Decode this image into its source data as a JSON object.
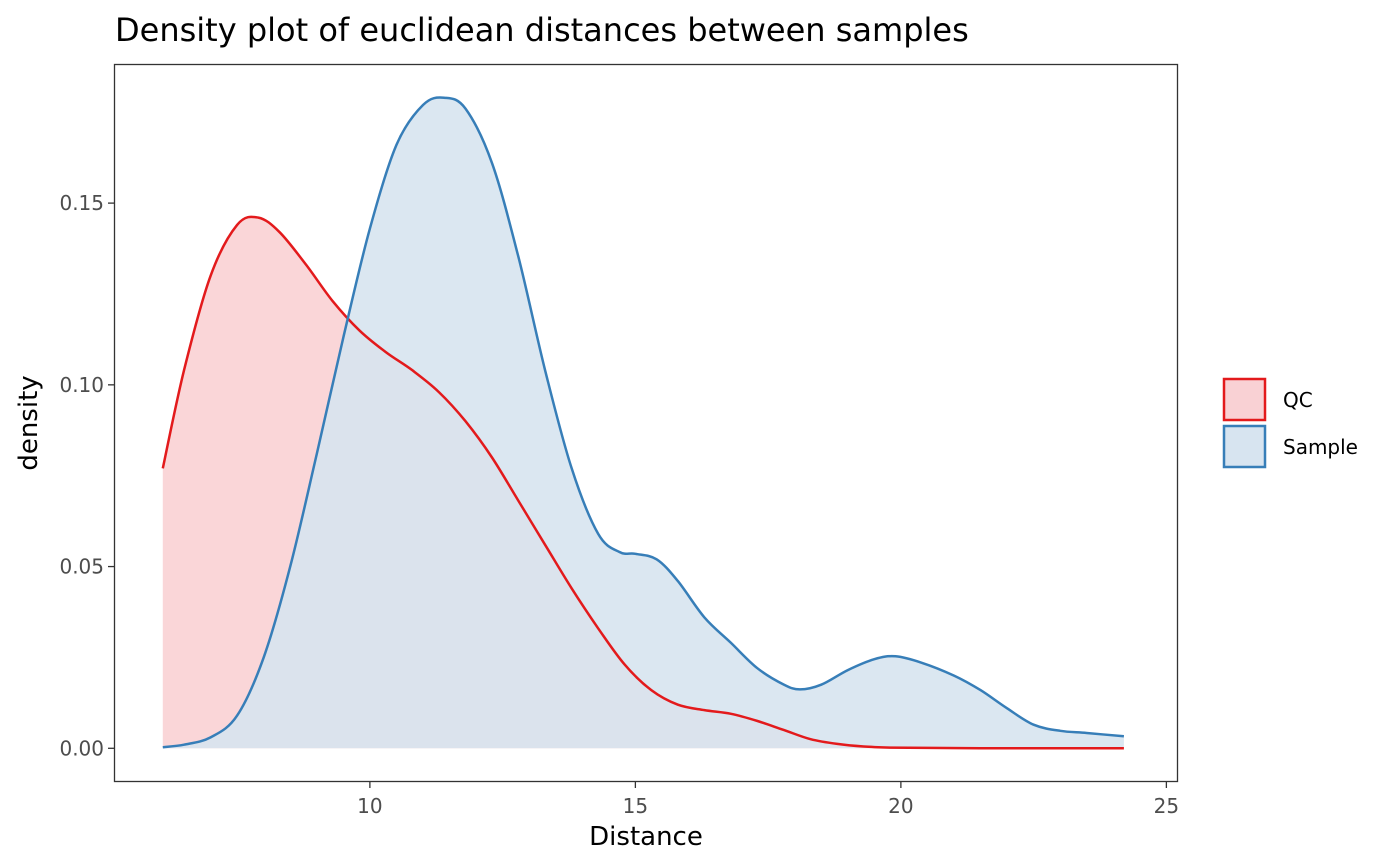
{
  "chart_data": {
    "type": "area",
    "title": "Density plot of euclidean distances between samples",
    "xlabel": "Distance",
    "ylabel": "density",
    "xlim": [
      5.2,
      25.2
    ],
    "ylim": [
      -0.009,
      0.188
    ],
    "x_ticks": [
      10,
      15,
      20,
      25
    ],
    "x_tick_labels": [
      "10",
      "15",
      "20",
      "25"
    ],
    "y_ticks": [
      0,
      0.05,
      0.1,
      0.15
    ],
    "y_tick_labels": [
      "0.00",
      "0.05",
      "0.10",
      "0.15"
    ],
    "grid": false,
    "legend_position": "right",
    "series": [
      {
        "name": "QC",
        "line_color": "#e31a1c",
        "fill_color": "#f9d1d4",
        "fill_opacity": 0.9,
        "x": [
          6.1,
          6.5,
          7.0,
          7.5,
          7.9,
          8.3,
          8.8,
          9.3,
          9.8,
          10.3,
          10.8,
          11.3,
          11.8,
          12.3,
          12.8,
          13.3,
          13.8,
          14.3,
          14.8,
          15.3,
          15.8,
          16.3,
          16.8,
          17.3,
          17.8,
          18.3,
          18.8,
          19.3,
          19.8,
          20.5,
          21.5,
          22.5,
          23.5,
          24.2
        ],
        "values": [
          0.077,
          0.104,
          0.13,
          0.144,
          0.146,
          0.142,
          0.133,
          0.123,
          0.115,
          0.109,
          0.104,
          0.098,
          0.09,
          0.08,
          0.068,
          0.056,
          0.044,
          0.033,
          0.023,
          0.016,
          0.012,
          0.0105,
          0.0095,
          0.0075,
          0.005,
          0.0025,
          0.0012,
          0.0005,
          0.0002,
          0.0001,
          0.0,
          0.0,
          0.0,
          0.0
        ]
      },
      {
        "name": "Sample",
        "line_color": "#377eb8",
        "fill_color": "#d7e4f0",
        "fill_opacity": 0.9,
        "x": [
          6.1,
          6.5,
          7.0,
          7.5,
          8.0,
          8.5,
          9.0,
          9.5,
          10.0,
          10.5,
          11.0,
          11.4,
          11.8,
          12.3,
          12.8,
          13.3,
          13.8,
          14.3,
          14.7,
          15.0,
          15.4,
          15.8,
          16.3,
          16.8,
          17.3,
          17.8,
          18.1,
          18.5,
          19.0,
          19.5,
          19.9,
          20.4,
          21.0,
          21.5,
          22.0,
          22.5,
          23.0,
          23.5,
          24.2
        ],
        "values": [
          0.0003,
          0.001,
          0.003,
          0.009,
          0.025,
          0.05,
          0.081,
          0.113,
          0.143,
          0.166,
          0.177,
          0.179,
          0.176,
          0.161,
          0.135,
          0.104,
          0.077,
          0.059,
          0.054,
          0.0535,
          0.052,
          0.046,
          0.036,
          0.029,
          0.022,
          0.0175,
          0.0162,
          0.0175,
          0.0215,
          0.0245,
          0.0253,
          0.0235,
          0.02,
          0.016,
          0.011,
          0.0065,
          0.0048,
          0.0042,
          0.0033
        ]
      }
    ]
  }
}
